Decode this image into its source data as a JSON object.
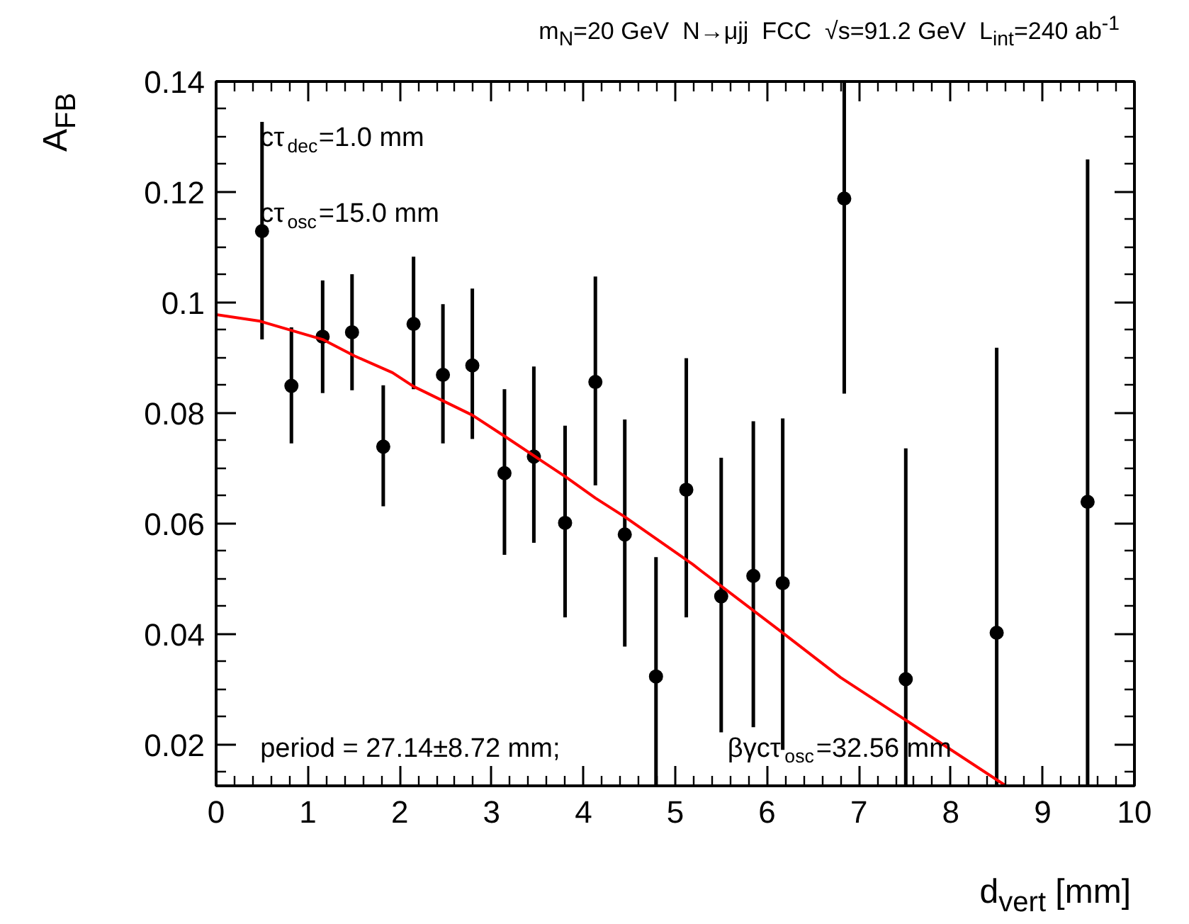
{
  "chart_data": {
    "type": "scatter",
    "title": "m$_{N}$=20 GeV  N→μjj   FCC  √s=91.2 GeV  L$_{int}$=240 ab$^{-1}$",
    "xlabel": "d$_{vert}$ [mm]",
    "ylabel": "A$_{FB}$",
    "xlim": [
      0,
      10
    ],
    "ylim": [
      0.0125,
      0.14
    ],
    "xticks": [
      0,
      1,
      2,
      3,
      4,
      5,
      6,
      7,
      8,
      9,
      10
    ],
    "yticks": [
      0.02,
      0.04,
      0.06,
      0.08,
      0.1,
      0.12,
      0.14
    ],
    "grid": false,
    "marker": "circle",
    "series": [
      {
        "color": "#000000",
        "x": [
          0.5,
          0.82,
          1.16,
          1.48,
          1.82,
          2.15,
          2.47,
          2.79,
          3.14,
          3.46,
          3.8,
          4.13,
          4.45,
          4.79,
          5.12,
          5.5,
          5.85,
          6.17,
          6.84,
          7.51,
          8.5,
          9.49
        ],
        "values": [
          0.1129,
          0.0849,
          0.0938,
          0.0946,
          0.0739,
          0.0961,
          0.0869,
          0.0886,
          0.0691,
          0.0721,
          0.0601,
          0.0856,
          0.058,
          0.0323,
          0.0661,
          0.0468,
          0.0505,
          0.0492,
          0.1188,
          0.0318,
          0.0402,
          0.0639
        ],
        "errors": [
          [
            0.0933,
            0.1327
          ],
          [
            0.0745,
            0.0955
          ],
          [
            0.0836,
            0.104
          ],
          [
            0.0841,
            0.1051
          ],
          [
            0.0631,
            0.085
          ],
          [
            0.0843,
            0.1083
          ],
          [
            0.0745,
            0.0997
          ],
          [
            0.0753,
            0.1025
          ],
          [
            0.0543,
            0.0843
          ],
          [
            0.0565,
            0.0884
          ],
          [
            0.043,
            0.0777
          ],
          [
            0.0669,
            0.1047
          ],
          [
            0.0377,
            0.0788
          ],
          [
            0.0125,
            0.0539
          ],
          [
            0.043,
            0.0899
          ],
          [
            0.0222,
            0.0719
          ],
          [
            0.0231,
            0.0785
          ],
          [
            0.019,
            0.079
          ],
          [
            0.0835,
            0.14
          ],
          [
            0.0125,
            0.0736
          ],
          [
            0.0125,
            0.0918
          ],
          [
            0.0125,
            0.1259
          ]
        ]
      },
      {
        "type": "line",
        "color": "#ff0000",
        "line_style": "solid",
        "marker": "none",
        "x": [
          0,
          0.48,
          1.16,
          1.51,
          1.92,
          2.15,
          2.79,
          3.14,
          3.8,
          4.13,
          4.45,
          5.19,
          5.29,
          6.17,
          6.8,
          7.51,
          8.6
        ],
        "values": [
          0.0978,
          0.0966,
          0.0933,
          0.0903,
          0.0873,
          0.0848,
          0.0796,
          0.0758,
          0.0685,
          0.0646,
          0.0612,
          0.0526,
          0.0513,
          0.0402,
          0.0321,
          0.0244,
          0.0125
        ]
      }
    ],
    "annotations": [
      "cτ$_{dec}$=1.0 mm",
      "cτ$_{osc}$=15.0 mm",
      "period = 27.14±8.72 mm;",
      "βγcτ$_{osc}$=32.56 mm"
    ]
  }
}
